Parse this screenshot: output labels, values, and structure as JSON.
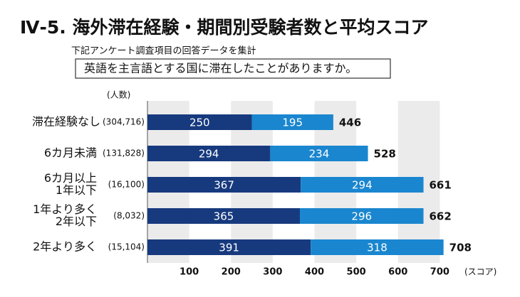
{
  "chart_data": {
    "type": "stacked-bar-horizontal",
    "title": "Ⅳ-5. 海外滞在経験・期間別受験者数と平均スコア",
    "subtitle": "下記アンケート調査項目の回答データを集計",
    "question": "英語を主言語とする国に滞在したことがありますか。",
    "y_axis_label": "(人数)",
    "x_axis_label": "(スコア)",
    "categories": [
      [
        "滞在経験なし"
      ],
      [
        "6カ月未満"
      ],
      [
        "6カ月以上",
        "1年以下"
      ],
      [
        "1年より多く",
        "2年以下"
      ],
      [
        "2年より多く"
      ]
    ],
    "count_labels": [
      "(304,716)",
      "(131,828)",
      "(16,100)",
      "(8,032)",
      "(15,104)"
    ],
    "series": [
      {
        "color": "#173a7e",
        "values": [
          250,
          294,
          367,
          365,
          391
        ]
      },
      {
        "color": "#1a86cf",
        "values": [
          195,
          234,
          294,
          296,
          318
        ]
      }
    ],
    "totals": [
      446,
      528,
      661,
      662,
      708
    ],
    "xlim": [
      0,
      800
    ],
    "xticks": [
      100,
      200,
      300,
      400,
      500,
      600,
      700
    ],
    "band_shading": true
  }
}
